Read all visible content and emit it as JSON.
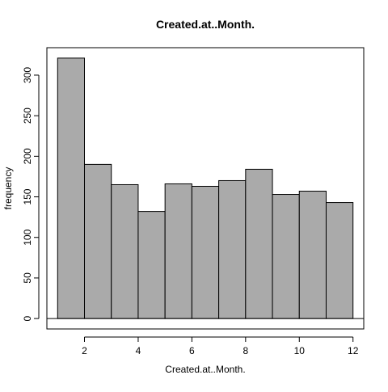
{
  "chart_data": {
    "type": "bar",
    "title": "Created.at..Month.",
    "xlabel": "Created.at..Month.",
    "ylabel": "frequency",
    "bin_edges": [
      1,
      2,
      3,
      4,
      5,
      6,
      7,
      8,
      9,
      10,
      11,
      12
    ],
    "values": [
      321,
      190,
      165,
      132,
      166,
      163,
      170,
      184,
      153,
      157,
      143
    ],
    "x_ticks": [
      2,
      4,
      6,
      8,
      10,
      12
    ],
    "y_ticks": [
      0,
      50,
      100,
      150,
      200,
      250,
      300
    ],
    "xlim": [
      0.6,
      12.4
    ],
    "ylim": [
      -12.84,
      333.84
    ],
    "bar_color": "#aaaaaa",
    "bar_edge_color": "#000000",
    "grid": false,
    "baseline": 0
  }
}
